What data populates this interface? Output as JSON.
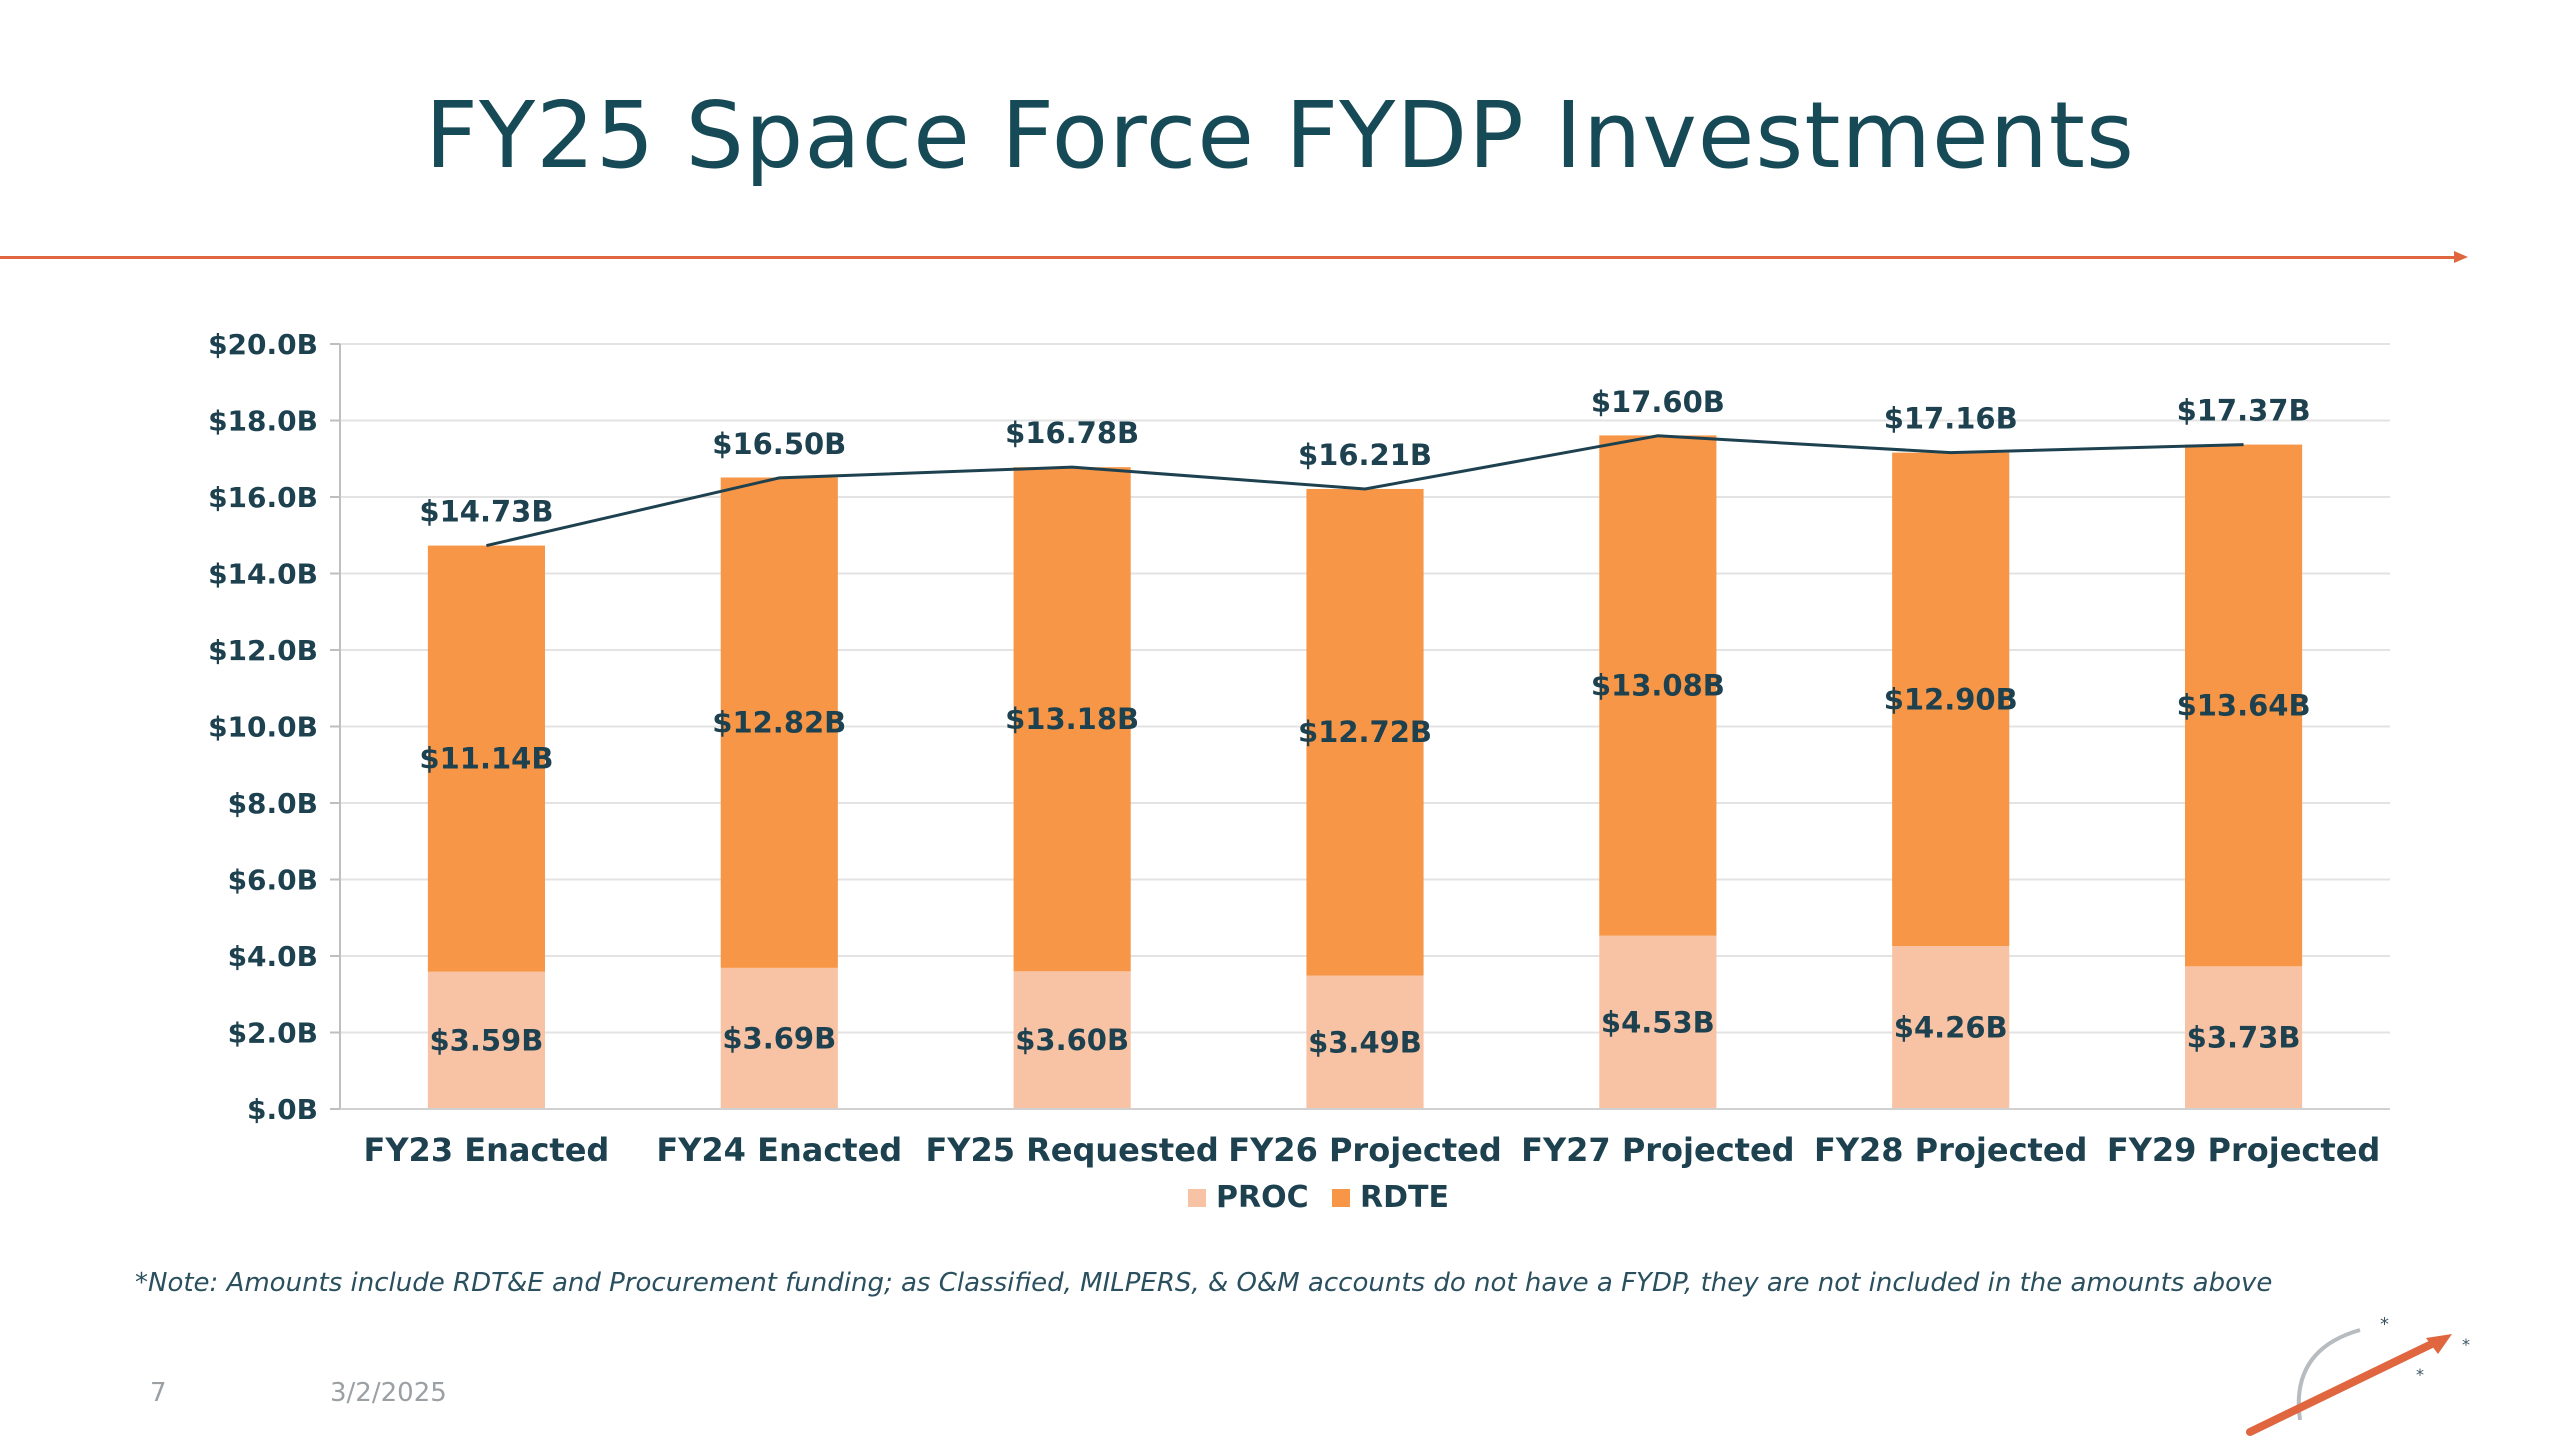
{
  "slide": {
    "title": "FY25 Space Force FYDP Investments",
    "note": "*Note: Amounts include RDT&E and Procurement funding; as Classified, MILPERS, & O&M accounts do not have a FYDP, they are not included in the amounts above",
    "page_number": "7",
    "date": "3/2/2025",
    "accent_color": "#e0663f",
    "title_color": "#174a57"
  },
  "chart_data": {
    "type": "bar",
    "stacked": true,
    "title": "",
    "xlabel": "",
    "ylabel": "",
    "ylim": [
      0,
      20
    ],
    "y_ticks": [
      "$.0B",
      "$2.0B",
      "$4.0B",
      "$6.0B",
      "$8.0B",
      "$10.0B",
      "$12.0B",
      "$14.0B",
      "$16.0B",
      "$18.0B",
      "$20.0B"
    ],
    "y_tick_values": [
      0,
      2,
      4,
      6,
      8,
      10,
      12,
      14,
      16,
      18,
      20
    ],
    "grid": true,
    "legend_position": "bottom",
    "categories": [
      "FY23 Enacted",
      "FY24 Enacted",
      "FY25 Requested",
      "FY26 Projected",
      "FY27 Projected",
      "FY28 Projected",
      "FY29 Projected"
    ],
    "series": [
      {
        "name": "PROC",
        "color": "#f8c3a5",
        "values": [
          3.59,
          3.69,
          3.6,
          3.49,
          4.53,
          4.26,
          3.73
        ],
        "labels": [
          "$3.59B",
          "$3.69B",
          "$3.60B",
          "$3.49B",
          "$4.53B",
          "$4.26B",
          "$3.73B"
        ]
      },
      {
        "name": "RDTE",
        "color": "#f79646",
        "values": [
          11.14,
          12.82,
          13.18,
          12.72,
          13.08,
          12.9,
          13.64
        ],
        "labels": [
          "$11.14B",
          "$12.82B",
          "$13.18B",
          "$12.72B",
          "$13.08B",
          "$12.90B",
          "$13.64B"
        ]
      }
    ],
    "totals": {
      "color": "#1e4150",
      "values": [
        14.73,
        16.5,
        16.78,
        16.21,
        17.6,
        17.16,
        17.37
      ],
      "labels": [
        "$14.73B",
        "$16.50B",
        "$16.78B",
        "$16.21B",
        "$17.60B",
        "$17.16B",
        "$17.37B"
      ]
    }
  }
}
